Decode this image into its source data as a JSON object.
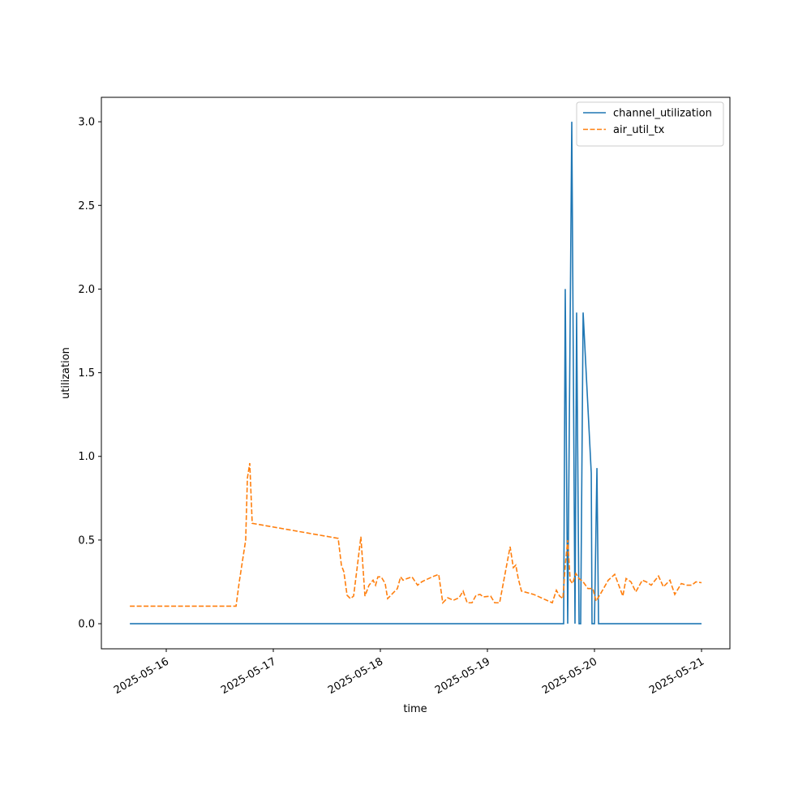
{
  "chart_data": {
    "type": "line",
    "xlabel": "time",
    "ylabel": "utilization",
    "xlim": [
      15.394,
      21.265
    ],
    "xticks": [
      {
        "value": 16,
        "label": "2025-05-16"
      },
      {
        "value": 17,
        "label": "2025-05-17"
      },
      {
        "value": 18,
        "label": "2025-05-18"
      },
      {
        "value": 19,
        "label": "2025-05-19"
      },
      {
        "value": 20,
        "label": "2025-05-20"
      },
      {
        "value": 21,
        "label": "2025-05-21"
      }
    ],
    "ylim": [
      -0.15,
      3.146
    ],
    "yticks": [
      {
        "value": 0,
        "label": "0.0"
      },
      0.5,
      {
        "value": 1,
        "label": "1.0"
      },
      1.5,
      {
        "value": 2,
        "label": "2.0"
      },
      2.5,
      {
        "value": 3,
        "label": "3.0"
      }
    ],
    "grid": false,
    "legend": "upper right",
    "series": [
      {
        "name": "channel_utilization",
        "color": "#1f77b4",
        "linestyle": "solid",
        "x": [
          15.66,
          19.712,
          19.727,
          19.75,
          19.788,
          19.818,
          19.833,
          19.856,
          19.871,
          19.894,
          19.97,
          19.977,
          20.0,
          20.023,
          20.038,
          21.0
        ],
        "values": [
          0,
          0,
          2.0,
          0,
          3.0,
          0,
          1.86,
          0,
          0,
          1.86,
          0.9,
          0,
          0,
          0.93,
          0,
          0
        ]
      },
      {
        "name": "air_util_tx",
        "color": "#ff7f0e",
        "linestyle": "dashed",
        "x": [
          15.66,
          16.652,
          16.682,
          16.742,
          16.758,
          16.78,
          16.803,
          17.606,
          17.636,
          17.659,
          17.689,
          17.72,
          17.75,
          17.788,
          17.818,
          17.856,
          17.894,
          17.932,
          17.955,
          17.977,
          18.008,
          18.045,
          18.068,
          18.129,
          18.159,
          18.189,
          18.212,
          18.25,
          18.295,
          18.348,
          18.386,
          18.417,
          18.485,
          18.545,
          18.583,
          18.629,
          18.682,
          18.735,
          18.773,
          18.811,
          18.856,
          18.894,
          18.932,
          18.962,
          19.03,
          19.068,
          19.114,
          19.212,
          19.242,
          19.265,
          19.288,
          19.318,
          19.432,
          19.606,
          19.644,
          19.674,
          19.705,
          19.727,
          19.75,
          19.773,
          19.795,
          19.826,
          19.856,
          19.894,
          19.939,
          19.985,
          20.015,
          20.053,
          20.129,
          20.189,
          20.265,
          20.295,
          20.341,
          20.386,
          20.447,
          20.485,
          20.53,
          20.598,
          20.644,
          20.705,
          20.75,
          20.811,
          20.864,
          20.909,
          20.947,
          21.0
        ],
        "values": [
          0.105,
          0.105,
          0.25,
          0.5,
          0.87,
          0.96,
          0.6,
          0.51,
          0.35,
          0.31,
          0.17,
          0.15,
          0.165,
          0.36,
          0.52,
          0.165,
          0.23,
          0.26,
          0.23,
          0.28,
          0.28,
          0.24,
          0.15,
          0.19,
          0.21,
          0.28,
          0.26,
          0.27,
          0.28,
          0.23,
          0.25,
          0.26,
          0.28,
          0.295,
          0.125,
          0.155,
          0.14,
          0.155,
          0.195,
          0.125,
          0.125,
          0.17,
          0.175,
          0.16,
          0.165,
          0.125,
          0.125,
          0.46,
          0.335,
          0.35,
          0.27,
          0.195,
          0.175,
          0.125,
          0.2,
          0.165,
          0.15,
          0.35,
          0.5,
          0.26,
          0.24,
          0.3,
          0.27,
          0.25,
          0.21,
          0.21,
          0.135,
          0.175,
          0.26,
          0.295,
          0.165,
          0.27,
          0.25,
          0.19,
          0.26,
          0.25,
          0.23,
          0.285,
          0.22,
          0.26,
          0.175,
          0.24,
          0.23,
          0.23,
          0.25,
          0.245
        ]
      }
    ]
  }
}
